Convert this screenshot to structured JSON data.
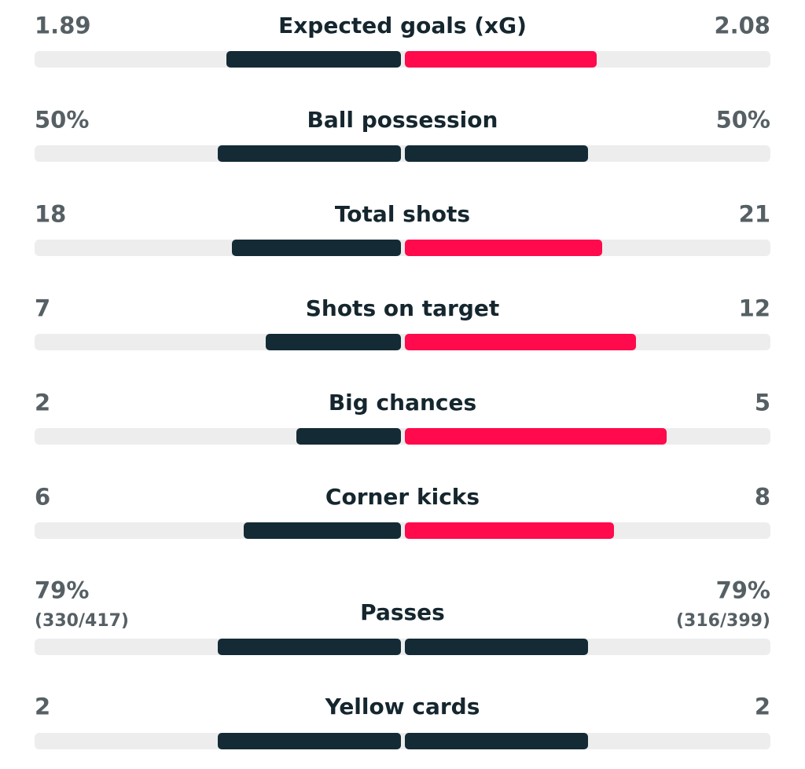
{
  "home_color": "#142b36",
  "away_color": "#ff0a4c",
  "stats": [
    {
      "label": "Expected goals (xG)",
      "home": 1.89,
      "away": 2.08
    },
    {
      "label": "Ball possession",
      "home": 50,
      "home_label": "50%",
      "away": 50,
      "away_label": "50%"
    },
    {
      "label": "Total shots",
      "home": 18,
      "away": 21
    },
    {
      "label": "Shots on target",
      "home": 7,
      "away": 12
    },
    {
      "label": "Big chances",
      "home": 2,
      "away": 5
    },
    {
      "label": "Corner kicks",
      "home": 6,
      "away": 8
    },
    {
      "label": "Passes",
      "home": 79,
      "home_label": "79%",
      "home_detail": "(330/417)",
      "away": 79,
      "away_label": "79%",
      "away_detail": "(316/399)"
    },
    {
      "label": "Yellow cards",
      "home": 2,
      "away": 2
    }
  ]
}
